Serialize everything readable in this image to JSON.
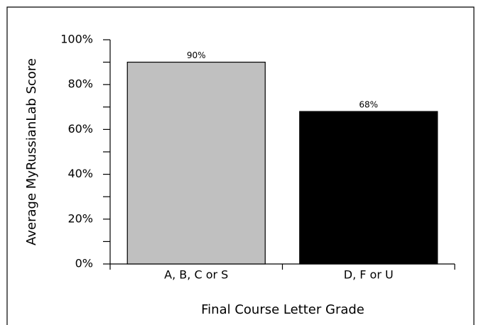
{
  "chart_data": {
    "type": "bar",
    "categories": [
      "A, B, C or S",
      "D, F or U"
    ],
    "values": [
      90,
      68
    ],
    "value_labels": [
      "90%",
      "68%"
    ],
    "colors": [
      "#c0c0c0",
      "#000000"
    ],
    "xlabel": "Final Course Letter Grade",
    "ylabel": "Average MyRussianLab Score",
    "ylim": [
      0,
      100
    ],
    "yticks": [
      {
        "value": 0,
        "label": "0%"
      },
      {
        "value": 20,
        "label": "20%"
      },
      {
        "value": 40,
        "label": "40%"
      },
      {
        "value": 60,
        "label": "60%"
      },
      {
        "value": 80,
        "label": "80%"
      },
      {
        "value": 100,
        "label": "100%"
      }
    ],
    "minor_yticks": [
      10,
      30,
      50,
      70,
      90
    ],
    "grid": false
  }
}
